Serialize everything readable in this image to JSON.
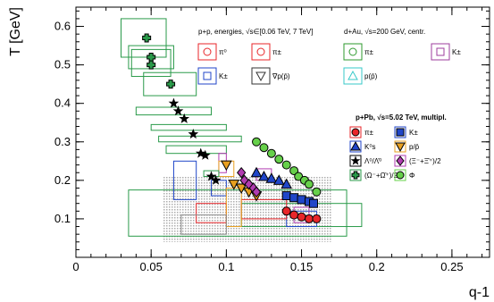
{
  "chart_data": {
    "type": "scatter",
    "title": "",
    "xlabel": "q-1",
    "ylabel": "T [GeV]",
    "xlim": [
      0,
      0.275
    ],
    "ylim": [
      0,
      0.65
    ],
    "x_ticks": [
      0,
      0.05,
      0.1,
      0.15,
      0.2,
      0.25
    ],
    "x_tick_labels": [
      "0",
      "0.05",
      "0.1",
      "0.15",
      "0.2",
      "0.25"
    ],
    "y_ticks": [
      0.1,
      0.2,
      0.3,
      0.4,
      0.5,
      0.6
    ],
    "y_tick_labels": [
      "0.1",
      "0.2",
      "0.3",
      "0.4",
      "0.5",
      "0.6"
    ],
    "grid": false,
    "legend_headers": {
      "pp": "p+p, energies, √s∈[0.06 TeV, 7 TeV]",
      "dau": "d+Au, √s=200 GeV, centr.",
      "ppb": "p+Pb, √s=5.02 TeV, multipl."
    },
    "legend_open": [
      {
        "label": "π⁰",
        "marker": "circle-open",
        "color": "#e8262a"
      },
      {
        "label": "π±",
        "marker": "circle-open",
        "color": "#e8262a"
      },
      {
        "label": "π±",
        "marker": "circle-open",
        "color": "#2e9a2e"
      },
      {
        "label": "K±",
        "marker": "square-open",
        "color": "#9c3d9c"
      },
      {
        "label": "K±",
        "marker": "square-open",
        "color": "#2046c8"
      },
      {
        "label": "∇p(p̄)",
        "marker": "tri-down-open",
        "color": "#333333"
      },
      {
        "label": "p(p̄)",
        "marker": "tri-up-open",
        "color": "#37c9c9"
      }
    ],
    "legend_filled": [
      {
        "label": "π±",
        "marker": "circle",
        "color": "#e8262a"
      },
      {
        "label": "K±",
        "marker": "square",
        "color": "#2046c8"
      },
      {
        "label": "K⁰s",
        "marker": "tri-up",
        "color": "#2046c8"
      },
      {
        "label": "p/p̄",
        "marker": "tri-down",
        "color": "#e8a020"
      },
      {
        "label": "Λ⁰/Λ̄⁰",
        "marker": "star",
        "color": "#000000"
      },
      {
        "label": "(Ξ⁻+Ξ̄⁺)/2",
        "marker": "diamond",
        "color": "#b03cb0"
      },
      {
        "label": "(Ω⁻+Ω̄⁺)/2",
        "marker": "cross",
        "color": "#2a9a4a"
      },
      {
        "label": "Φ",
        "marker": "circle",
        "color": "#66d04a"
      }
    ],
    "series": [
      {
        "name": "(Ω⁻+Ω̄⁺)/2",
        "marker": "cross",
        "color": "#2a9a4a",
        "points": [
          [
            0.047,
            0.57
          ],
          [
            0.05,
            0.52
          ],
          [
            0.05,
            0.5
          ],
          [
            0.063,
            0.45
          ]
        ]
      },
      {
        "name": "Λ⁰/Λ̄⁰",
        "marker": "star",
        "color": "#000000",
        "points": [
          [
            0.065,
            0.4
          ],
          [
            0.068,
            0.38
          ],
          [
            0.072,
            0.36
          ],
          [
            0.078,
            0.32
          ],
          [
            0.083,
            0.27
          ],
          [
            0.086,
            0.265
          ],
          [
            0.09,
            0.21
          ],
          [
            0.093,
            0.2
          ]
        ]
      },
      {
        "name": "Φ",
        "marker": "circle",
        "color": "#66d04a",
        "points": [
          [
            0.12,
            0.3
          ],
          [
            0.125,
            0.285
          ],
          [
            0.13,
            0.27
          ],
          [
            0.135,
            0.255
          ],
          [
            0.14,
            0.24
          ],
          [
            0.145,
            0.225
          ],
          [
            0.148,
            0.21
          ],
          [
            0.152,
            0.2
          ],
          [
            0.155,
            0.19
          ],
          [
            0.16,
            0.17
          ]
        ]
      },
      {
        "name": "π±",
        "marker": "circle",
        "color": "#e8262a",
        "points": [
          [
            0.14,
            0.12
          ],
          [
            0.145,
            0.11
          ],
          [
            0.15,
            0.105
          ],
          [
            0.155,
            0.1
          ],
          [
            0.16,
            0.1
          ]
        ]
      },
      {
        "name": "K±",
        "marker": "square",
        "color": "#2046c8",
        "points": [
          [
            0.14,
            0.16
          ],
          [
            0.145,
            0.155
          ],
          [
            0.15,
            0.15
          ],
          [
            0.155,
            0.145
          ],
          [
            0.158,
            0.14
          ]
        ]
      },
      {
        "name": "K⁰s",
        "marker": "tri-up",
        "color": "#2046c8",
        "points": [
          [
            0.12,
            0.22
          ],
          [
            0.125,
            0.21
          ],
          [
            0.13,
            0.205
          ],
          [
            0.135,
            0.2
          ],
          [
            0.14,
            0.19
          ]
        ]
      },
      {
        "name": "p/p̄",
        "marker": "tri-down",
        "color": "#e8a020",
        "points": [
          [
            0.1,
            0.24
          ],
          [
            0.105,
            0.19
          ],
          [
            0.11,
            0.18
          ],
          [
            0.115,
            0.17
          ],
          [
            0.12,
            0.16
          ]
        ]
      },
      {
        "name": "(Ξ⁻+Ξ̄⁺)/2",
        "marker": "diamond",
        "color": "#b03cb0",
        "points": [
          [
            0.11,
            0.22
          ],
          [
            0.112,
            0.2
          ],
          [
            0.115,
            0.19
          ],
          [
            0.118,
            0.18
          ],
          [
            0.12,
            0.17
          ]
        ]
      }
    ]
  }
}
